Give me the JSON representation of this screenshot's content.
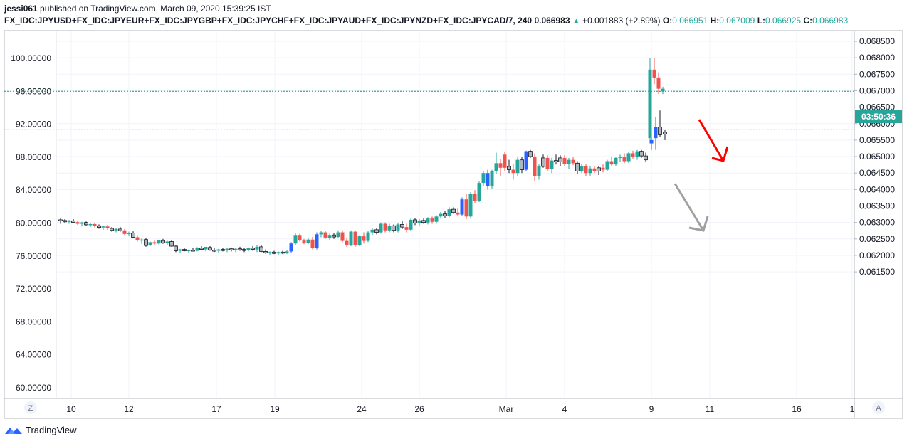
{
  "header": {
    "user": "jessi061",
    "published": " published on TradingView.com, March 09, 2020 15:39:25 IST",
    "symbol": "FX_IDC:JPYUSD+FX_IDC:JPYEUR+FX_IDC:JPYGBP+FX_IDC:JPYCHF+FX_IDC:JPYAUD+FX_IDC:JPYNZD+FX_IDC:JPYCAD/7, 240",
    "last": "0.066983",
    "change": "+0.001883 (+2.89%)",
    "o_label": "O:",
    "o_value": "0.066951",
    "h_label": "H:",
    "h_value": "0.067009",
    "l_label": "L:",
    "l_value": "0.066925",
    "c_label": "C:",
    "c_value": "0.066983"
  },
  "footer": {
    "brand": "TradingView"
  },
  "axis_buttons": {
    "left": "Z",
    "right": "A"
  },
  "countdown": "03:50:36",
  "colors": {
    "up": "#26a69a",
    "down": "#ef5350",
    "blue": "#2962ff",
    "dark": "#787b86",
    "hline": "#089981",
    "arrow_red": "#ff0000",
    "arrow_grey": "#a0a0a0"
  },
  "chart_data": {
    "type": "candlestick",
    "left_axis": {
      "ticks": [
        "100.00000",
        "96.00000",
        "92.00000",
        "88.00000",
        "84.00000",
        "80.00000",
        "76.00000",
        "72.00000",
        "68.00000",
        "64.00000",
        "60.00000"
      ]
    },
    "right_axis": {
      "ticks": [
        "0.068500",
        "0.068000",
        "0.067500",
        "0.067000",
        "0.066500",
        "0.066000",
        "0.065500",
        "0.065000",
        "0.064500",
        "0.064000",
        "0.063500",
        "0.063000",
        "0.062500",
        "0.062000",
        "0.061500"
      ]
    },
    "x_labels": [
      "10",
      "12",
      "17",
      "19",
      "24",
      "26",
      "Mar",
      "4",
      "9",
      "11",
      "16",
      "1"
    ],
    "horizontal_lines": [
      {
        "price": 0.066983,
        "label": "03:50:36"
      },
      {
        "price": 0.06583
      }
    ],
    "arrows": [
      {
        "color": "red",
        "direction": "down"
      },
      {
        "color": "grey",
        "direction": "down"
      }
    ]
  }
}
